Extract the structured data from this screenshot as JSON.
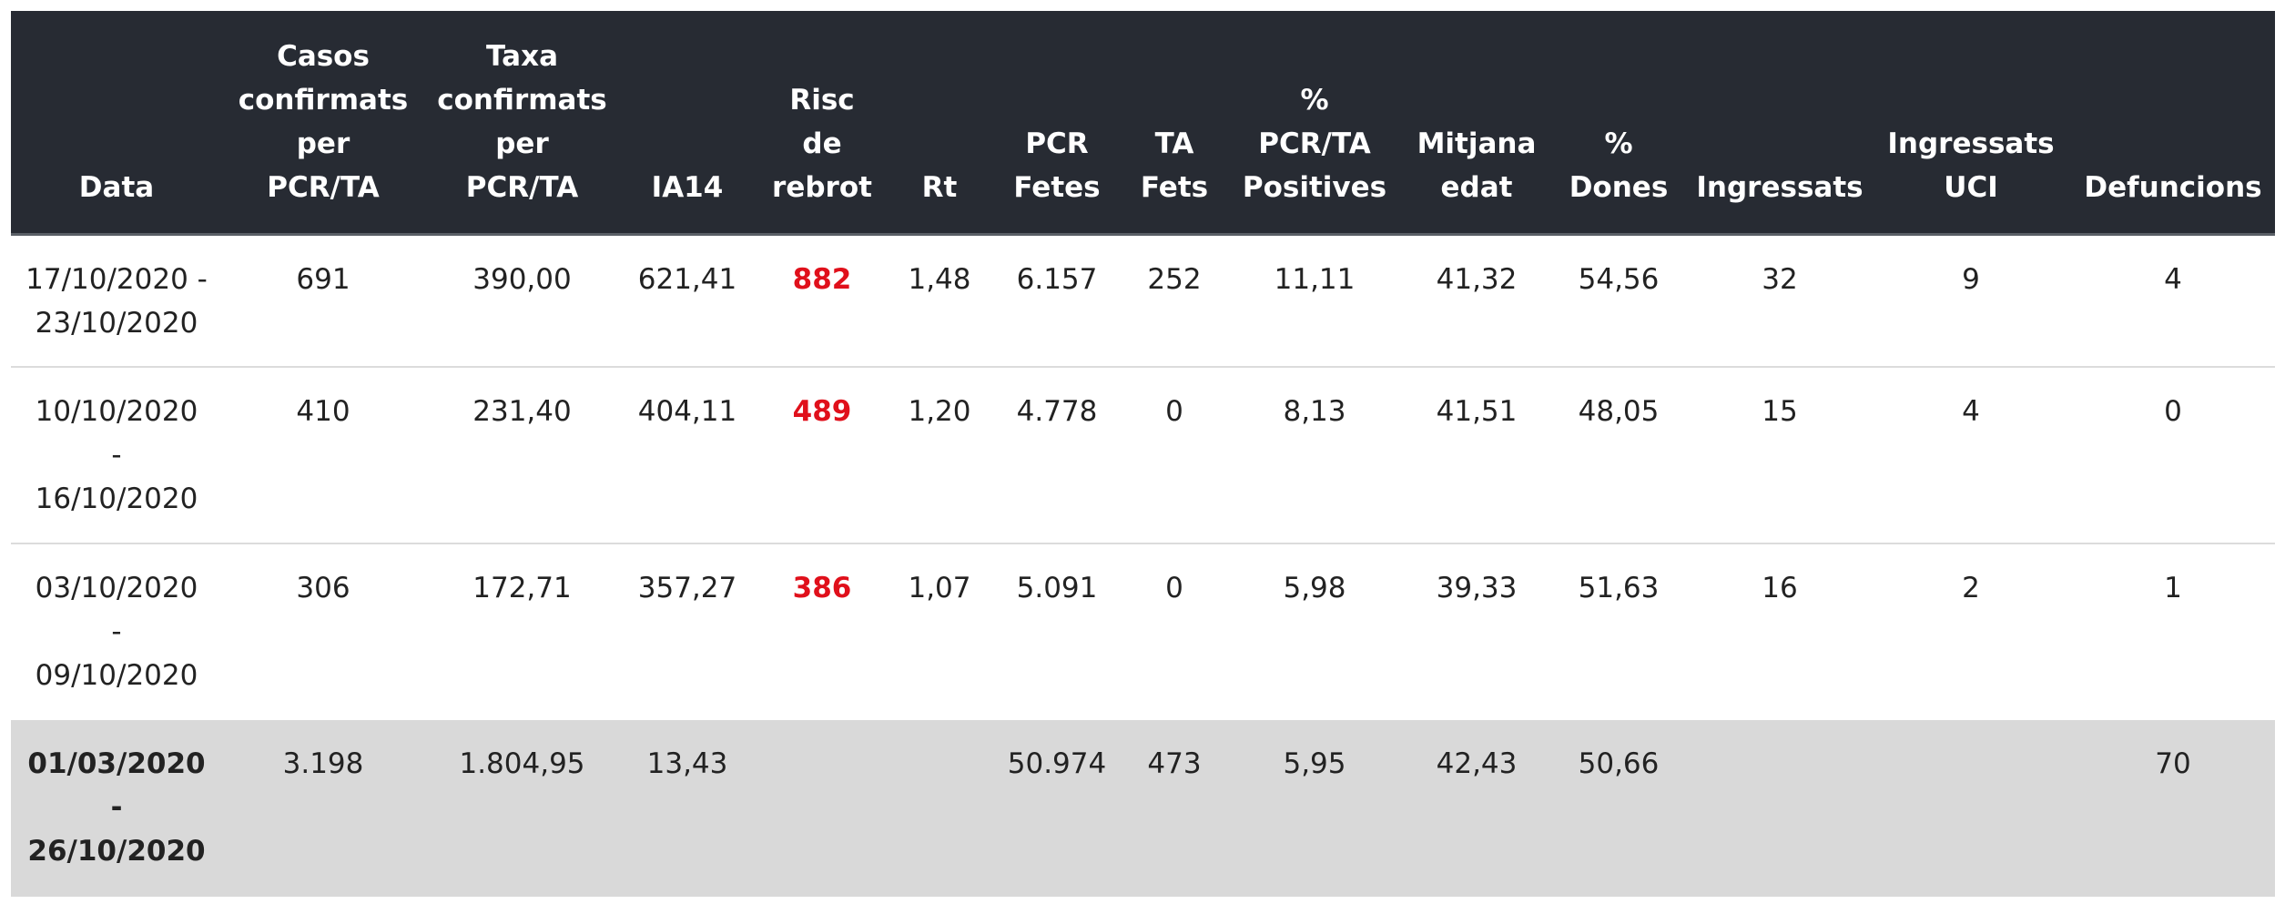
{
  "headers": [
    {
      "lines": [
        "Data"
      ]
    },
    {
      "lines": [
        "Casos",
        "confirmats",
        "per",
        "PCR/TA"
      ]
    },
    {
      "lines": [
        "Taxa",
        "confirmats",
        "per",
        "PCR/TA"
      ]
    },
    {
      "lines": [
        "IA14"
      ]
    },
    {
      "lines": [
        "Risc",
        "de",
        "rebrot"
      ]
    },
    {
      "lines": [
        "Rt"
      ]
    },
    {
      "lines": [
        "PCR",
        "Fetes"
      ]
    },
    {
      "lines": [
        "TA",
        "Fets"
      ]
    },
    {
      "lines": [
        "%",
        "PCR/TA",
        "Positives"
      ]
    },
    {
      "lines": [
        "Mitjana",
        "edat"
      ]
    },
    {
      "lines": [
        "%",
        "Dones"
      ]
    },
    {
      "lines": [
        "Ingressats"
      ]
    },
    {
      "lines": [
        "Ingressats",
        "UCI"
      ]
    },
    {
      "lines": [
        "Defuncions"
      ]
    }
  ],
  "rows": [
    {
      "date_lines": [
        "17/10/2020 -",
        "23/10/2020"
      ],
      "casos": "691",
      "taxa": "390,00",
      "ia14": "621,41",
      "risc": "882",
      "rt": "1,48",
      "pcr": "6.157",
      "ta": "252",
      "positives": "11,11",
      "edat": "41,32",
      "dones": "54,56",
      "ingressats": "32",
      "uci": "9",
      "defuncions": "4"
    },
    {
      "date_lines": [
        "10/10/2020",
        "-",
        "16/10/2020"
      ],
      "casos": "410",
      "taxa": "231,40",
      "ia14": "404,11",
      "risc": "489",
      "rt": "1,20",
      "pcr": "4.778",
      "ta": "0",
      "positives": "8,13",
      "edat": "41,51",
      "dones": "48,05",
      "ingressats": "15",
      "uci": "4",
      "defuncions": "0"
    },
    {
      "date_lines": [
        "03/10/2020",
        "-",
        "09/10/2020"
      ],
      "casos": "306",
      "taxa": "172,71",
      "ia14": "357,27",
      "risc": "386",
      "rt": "1,07",
      "pcr": "5.091",
      "ta": "0",
      "positives": "5,98",
      "edat": "39,33",
      "dones": "51,63",
      "ingressats": "16",
      "uci": "2",
      "defuncions": "1"
    }
  ],
  "total": {
    "date_lines": [
      "01/03/2020",
      "-",
      "26/10/2020"
    ],
    "casos": "3.198",
    "taxa": "1.804,95",
    "ia14": "13,43",
    "risc": "",
    "rt": "",
    "pcr": "50.974",
    "ta": "473",
    "positives": "5,95",
    "edat": "42,43",
    "dones": "50,66",
    "ingressats": "",
    "uci": "",
    "defuncions": "70"
  },
  "colors": {
    "header_bg": "#272b33",
    "header_text": "#ffffff",
    "risk_text": "#e0101b",
    "total_row_bg": "#d9d9d9",
    "row_divider": "#dcdcdc"
  }
}
